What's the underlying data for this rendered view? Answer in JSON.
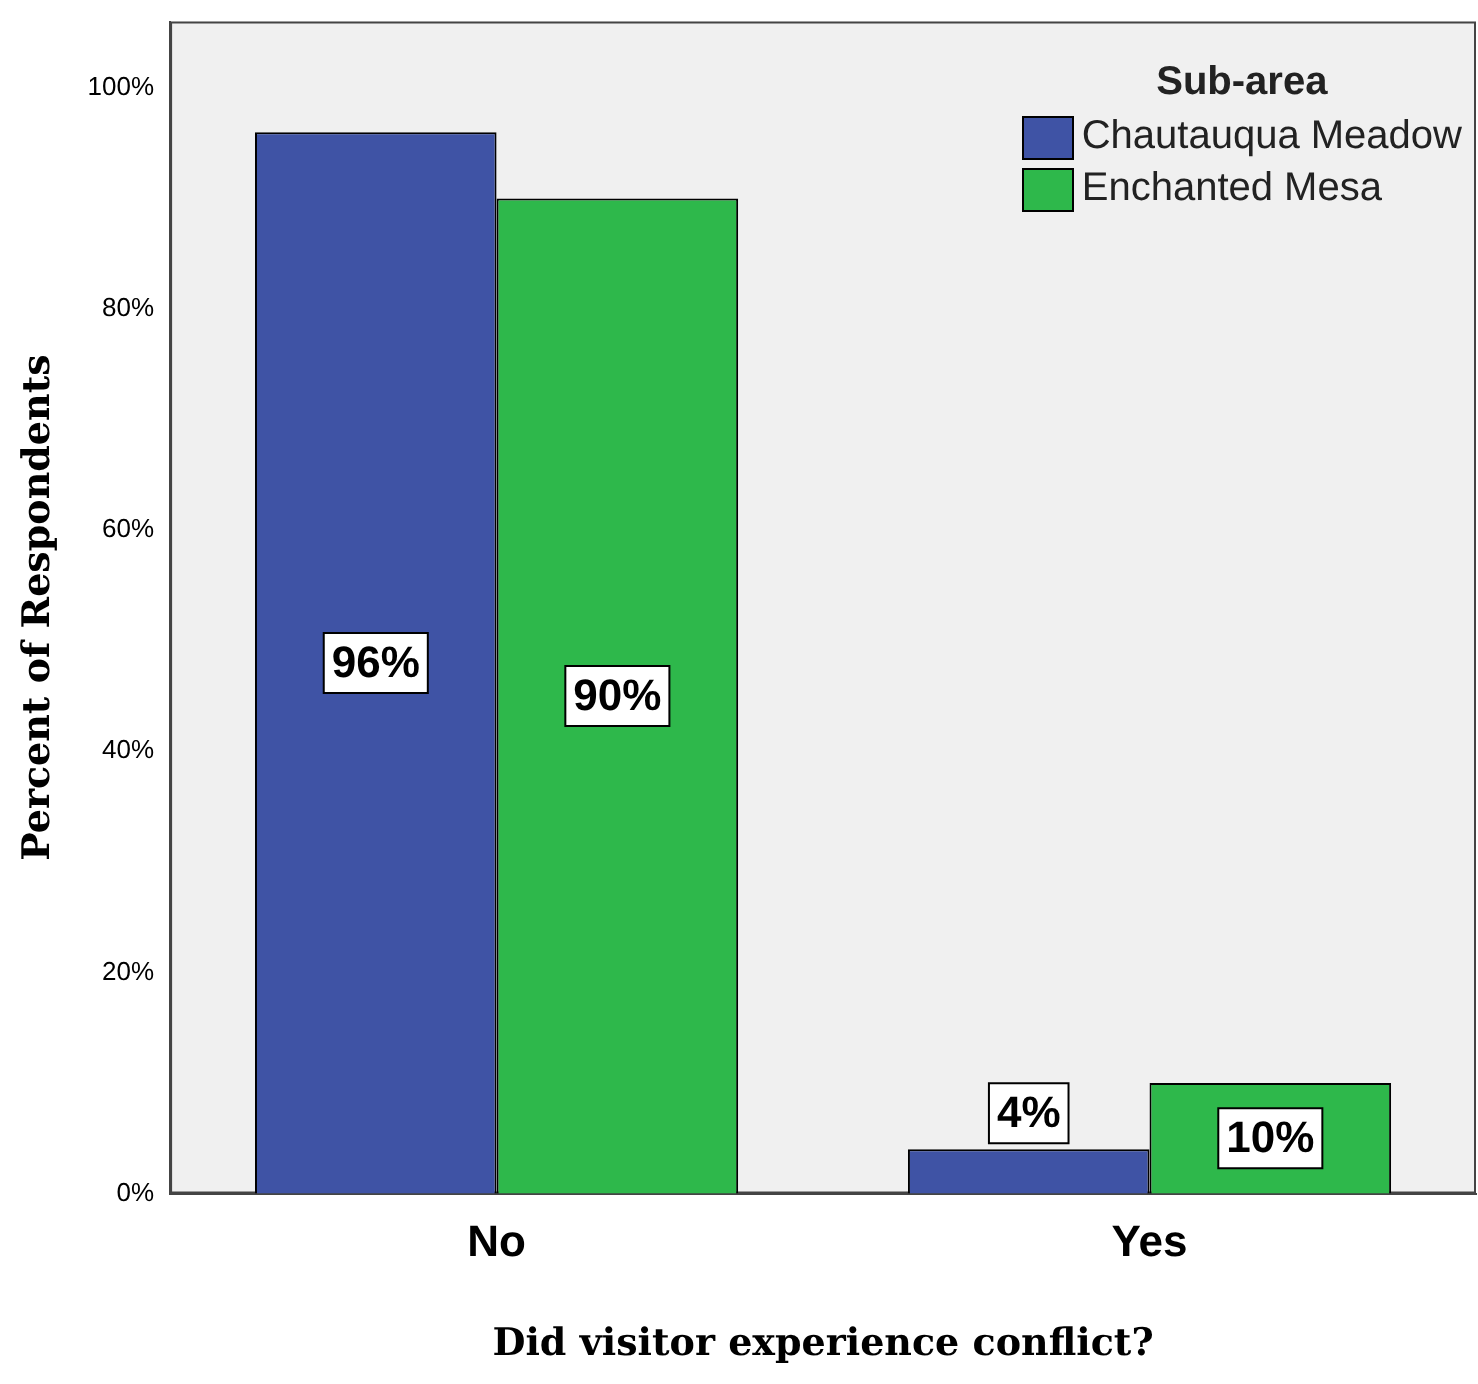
{
  "chart_data": {
    "type": "bar",
    "xlabel": "Did visitor experience conflict?",
    "ylabel": "Percent of Respondents",
    "legend_title": "Sub-area",
    "legend": "top right",
    "categories": [
      "No",
      "Yes"
    ],
    "series": [
      {
        "name": "Chautauqua Meadow",
        "color": "#3f53a5",
        "values": [
          96,
          4
        ],
        "value_labels": [
          "96%",
          "4%"
        ]
      },
      {
        "name": "Enchanted Mesa",
        "color": "#2eb84b",
        "values": [
          90,
          10
        ],
        "value_labels": [
          "90%",
          "10%"
        ]
      }
    ],
    "ylim": [
      0,
      106
    ],
    "yticks": [
      {
        "value": 0,
        "label": "0%"
      },
      {
        "value": 20,
        "label": "20%"
      },
      {
        "value": 40,
        "label": "40%"
      },
      {
        "value": 60,
        "label": "60%"
      },
      {
        "value": 80,
        "label": "80%"
      },
      {
        "value": 100,
        "label": "100%"
      }
    ],
    "grid": false
  }
}
